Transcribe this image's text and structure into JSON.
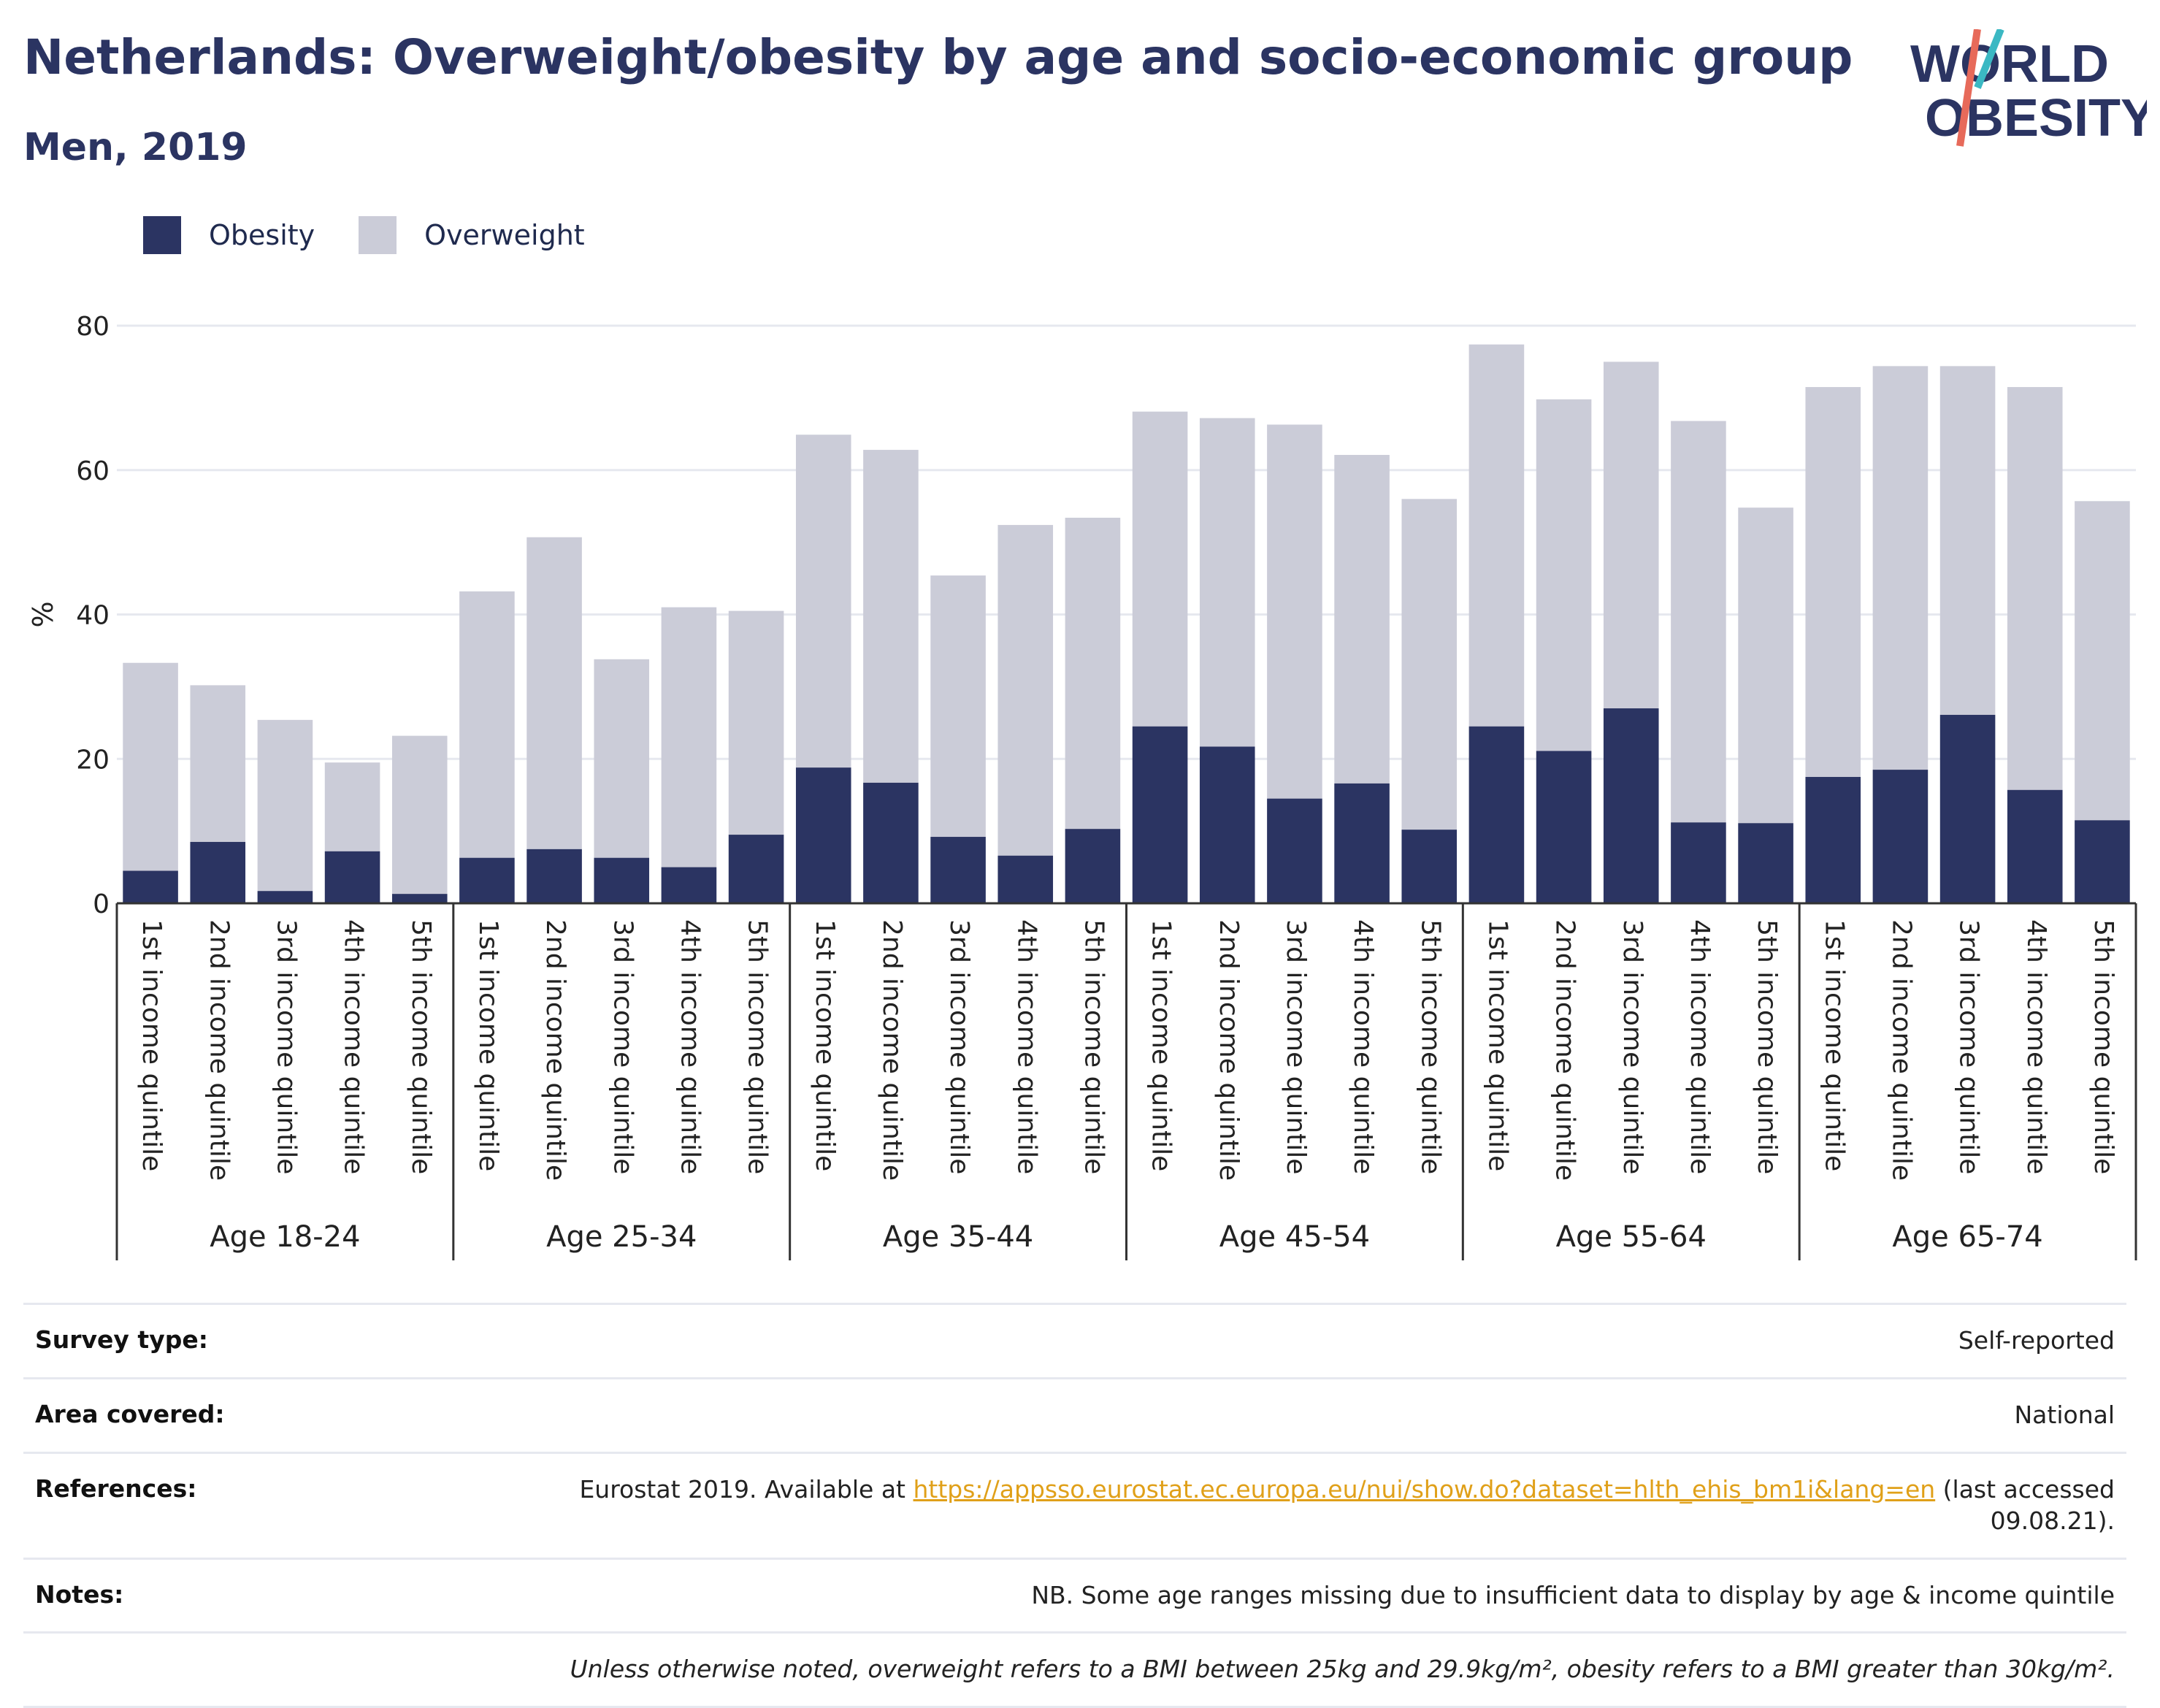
{
  "header": {
    "title": "Netherlands: Overweight/obesity by age and socio-economic group",
    "subtitle": "Men, 2019"
  },
  "logo": {
    "line1": "WORLD",
    "line2": "OBESITY"
  },
  "colors": {
    "obesity": "#2b3462",
    "overweight": "#cbccd8",
    "accent_teal": "#3bb8c3",
    "accent_coral": "#e76a5a",
    "link": "#e0a019"
  },
  "legend": [
    {
      "label": "Obesity",
      "color": "#2b3462"
    },
    {
      "label": "Overweight",
      "color": "#cbccd8"
    }
  ],
  "chart_data": {
    "type": "bar",
    "stacked": true,
    "ylabel": "%",
    "ylim": [
      0,
      80
    ],
    "yticks": [
      0,
      20,
      40,
      60,
      80
    ],
    "grid": true,
    "legend_position": "top-left",
    "groups": [
      "Age 18-24",
      "Age 25-34",
      "Age 35-44",
      "Age 45-54",
      "Age 55-64",
      "Age 65-74"
    ],
    "categories": [
      "1st income quintile",
      "2nd income quintile",
      "3rd income quintile",
      "4th income quintile",
      "5th income quintile"
    ],
    "series": [
      {
        "name": "Obesity",
        "values": [
          [
            4.5,
            8.5,
            1.7,
            7.2,
            1.3
          ],
          [
            6.3,
            7.5,
            6.3,
            5.0,
            9.5
          ],
          [
            18.8,
            16.7,
            9.2,
            6.6,
            10.3
          ],
          [
            24.5,
            21.7,
            14.5,
            16.6,
            10.2
          ],
          [
            24.5,
            21.1,
            27.0,
            11.2,
            11.1
          ],
          [
            17.5,
            18.5,
            26.1,
            15.7,
            11.5
          ]
        ]
      },
      {
        "name": "Overweight",
        "values": [
          [
            28.8,
            21.7,
            23.7,
            12.3,
            21.9
          ],
          [
            36.9,
            43.2,
            27.5,
            36.0,
            31.0
          ],
          [
            46.1,
            46.1,
            36.2,
            45.8,
            43.1
          ],
          [
            43.6,
            45.5,
            51.8,
            45.5,
            45.8
          ],
          [
            52.9,
            48.7,
            48.0,
            55.6,
            43.7
          ],
          [
            54.0,
            55.9,
            48.3,
            55.8,
            44.2
          ]
        ]
      }
    ]
  },
  "info": {
    "survey_label": "Survey type:",
    "survey_value": "Self-reported",
    "area_label": "Area covered:",
    "area_value": "National",
    "references_label": "References:",
    "references_prefix": "Eurostat 2019. Available at ",
    "references_link": "https://appsso.eurostat.ec.europa.eu/nui/show.do?dataset=hlth_ehis_bm1i&lang=en",
    "references_suffix": " (last accessed",
    "references_date": "09.08.21).",
    "notes_label": "Notes:",
    "notes_value": "NB. Some age ranges missing due to insufficient data to display by age & income quintile",
    "footnote": "Unless otherwise noted, overweight refers to a BMI between 25kg and 29.9kg/m², obesity refers to a BMI greater than 30kg/m²."
  }
}
